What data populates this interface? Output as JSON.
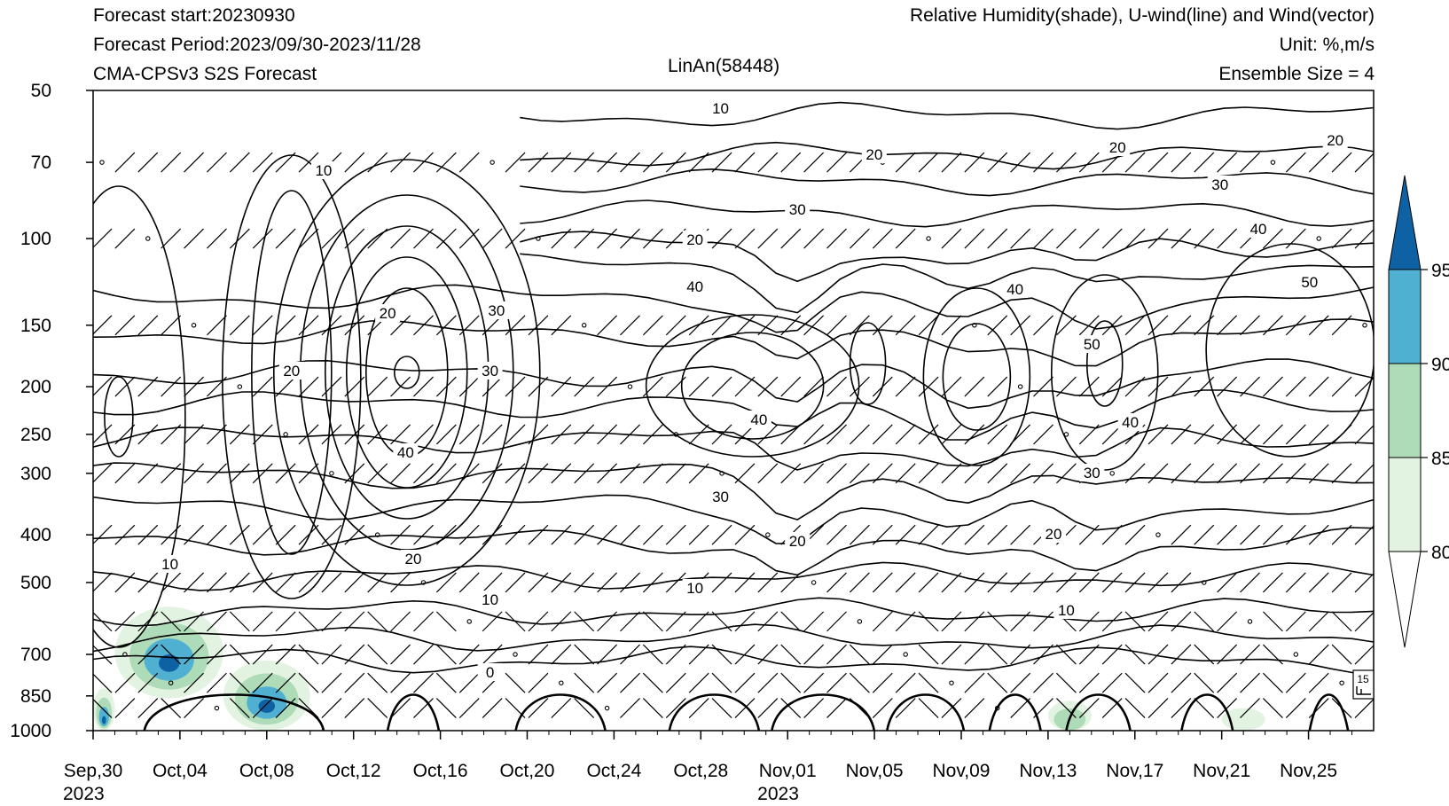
{
  "header": {
    "left_lines": [
      "Forecast start:20230930",
      "Forecast Period:2023/09/30-2023/11/28",
      "CMA-CPSv3 S2S Forecast"
    ],
    "right_lines": [
      "Relative Humidity(shade), U-wind(line) and Wind(vector)",
      "Unit: %,m/s",
      "Ensemble Size = 4"
    ],
    "center_title": "LinAn(58448)"
  },
  "chart_data": {
    "type": "heatmap",
    "subtype": "time-pressure cross-section (shaded RH, U-wind contours, wind barbs)",
    "x_axis": {
      "type": "date",
      "range": [
        "2023-09-30",
        "2023-11-28"
      ],
      "ticks": [
        "Sep,30",
        "Oct,04",
        "Oct,08",
        "Oct,12",
        "Oct,16",
        "Oct,20",
        "Oct,24",
        "Oct,28",
        "Nov,01",
        "Nov,05",
        "Nov,09",
        "Nov,13",
        "Nov,17",
        "Nov,21",
        "Nov,25"
      ],
      "tick_dates": [
        "2023-09-30",
        "2023-10-04",
        "2023-10-08",
        "2023-10-12",
        "2023-10-16",
        "2023-10-20",
        "2023-10-24",
        "2023-10-28",
        "2023-11-01",
        "2023-11-05",
        "2023-11-09",
        "2023-11-13",
        "2023-11-17",
        "2023-11-21",
        "2023-11-25"
      ],
      "year_labels": [
        {
          "under": "Sep,30",
          "text": "2023"
        },
        {
          "under": "Nov,01",
          "text": "2023"
        }
      ]
    },
    "y_axis": {
      "type": "log-pressure, inverted",
      "range": [
        1000,
        50
      ],
      "ticks": [
        50,
        70,
        100,
        150,
        200,
        250,
        300,
        400,
        500,
        700,
        850,
        1000
      ]
    },
    "shading": {
      "variable": "Relative Humidity",
      "levels": [
        80,
        85,
        90,
        95
      ],
      "colors": [
        "#e3f3e1",
        "#aedcb8",
        "#4fb0d2",
        "#0e62a4"
      ],
      "regions": [
        {
          "x": [
            "2023-09-30",
            "2023-10-01"
          ],
          "p": [
            820,
            1000
          ],
          "max_class": 95
        },
        {
          "x": [
            "2023-10-01",
            "2023-10-06"
          ],
          "p": [
            560,
            860
          ],
          "max_class": 95
        },
        {
          "x": [
            "2023-10-06",
            "2023-10-10"
          ],
          "p": [
            720,
            1000
          ],
          "max_class": 95
        },
        {
          "x": [
            "2023-11-13",
            "2023-11-15"
          ],
          "p": [
            870,
            1000
          ],
          "max_class": 85
        },
        {
          "x": [
            "2023-11-21",
            "2023-11-23"
          ],
          "p": [
            900,
            1000
          ],
          "max_class": 80
        }
      ]
    },
    "contours": {
      "variable": "U-wind",
      "labeled_values": [
        0,
        10,
        20,
        30,
        40,
        50
      ]
    },
    "vectors": {
      "variable": "Wind",
      "reference_vector": 15
    },
    "colorbar": {
      "labels": [
        80,
        85,
        90,
        95
      ],
      "colors": [
        "#ffffff",
        "#e3f3e1",
        "#aedcb8",
        "#4fb0d2",
        "#0e62a4"
      ]
    }
  }
}
